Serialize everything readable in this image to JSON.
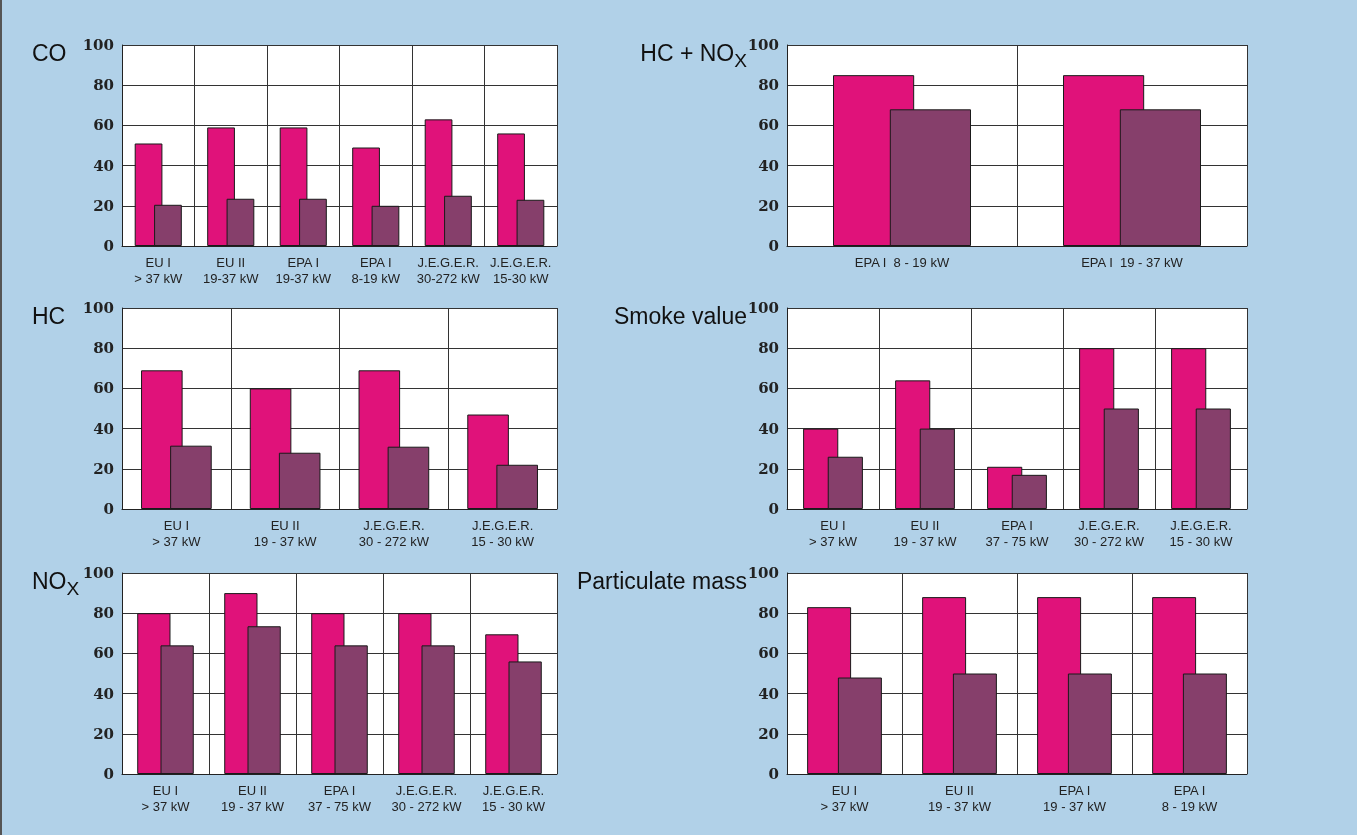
{
  "chart_data": [
    {
      "type": "bar",
      "title": "CO",
      "categories": [
        "EU I\n> 37 kW",
        "EU II\n19-37 kW",
        "EPA I\n19-37 kW",
        "EPA I\n8-19 kW",
        "J.E.G.E.R.\n30-272 kW",
        "J.E.G.E.R.\n15-30 kW"
      ],
      "series": [
        {
          "color": "#e0127a",
          "values": [
            51,
            59,
            59,
            49,
            63,
            56
          ]
        },
        {
          "color": "#863f6b",
          "values": [
            20.5,
            23.5,
            23.5,
            20,
            25,
            23
          ]
        }
      ],
      "ylim": [
        0,
        100
      ],
      "yticks": [
        0,
        20,
        40,
        60,
        80,
        100
      ],
      "grid": true
    },
    {
      "type": "bar",
      "title": "HC + NO$_{X}$",
      "categories": [
        "EPA I  8 - 19 kW",
        "EPA I  19 - 37 kW"
      ],
      "series": [
        {
          "color": "#e0127a",
          "values": [
            85,
            85
          ]
        },
        {
          "color": "#863f6b",
          "values": [
            68,
            68
          ]
        }
      ],
      "ylim": [
        0,
        100
      ],
      "yticks": [
        0,
        20,
        40,
        60,
        80,
        100
      ],
      "grid": true
    },
    {
      "type": "bar",
      "title": "HC",
      "categories": [
        "EU I\n> 37 kW",
        "EU II\n19 - 37 kW",
        "J.E.G.E.R.\n30 - 272 kW",
        "J.E.G.E.R.\n15 - 30 kW"
      ],
      "series": [
        {
          "color": "#e0127a",
          "values": [
            69,
            60,
            69,
            47
          ]
        },
        {
          "color": "#863f6b",
          "values": [
            31.5,
            28,
            31,
            22
          ]
        }
      ],
      "ylim": [
        0,
        100
      ],
      "yticks": [
        0,
        20,
        40,
        60,
        80,
        100
      ],
      "grid": true
    },
    {
      "type": "bar",
      "title": "Smoke value",
      "categories": [
        "EU I\n> 37 kW",
        "EU II\n19 - 37 kW",
        "EPA I\n37 - 75 kW",
        "J.E.G.E.R.\n30 - 272 kW",
        "J.E.G.E.R.\n15 - 30 kW"
      ],
      "series": [
        {
          "color": "#e0127a",
          "values": [
            40,
            64,
            21,
            80,
            80
          ]
        },
        {
          "color": "#863f6b",
          "values": [
            26,
            40,
            17,
            50,
            50
          ]
        }
      ],
      "ylim": [
        0,
        100
      ],
      "yticks": [
        0,
        20,
        40,
        60,
        80,
        100
      ],
      "grid": true
    },
    {
      "type": "bar",
      "title": "NO$_{X}$",
      "categories": [
        "EU I\n> 37 kW",
        "EU II\n19 - 37 kW",
        "EPA I\n37 - 75 kW",
        "J.E.G.E.R.\n30 - 272 kW",
        "J.E.G.E.R.\n15 - 30 kW"
      ],
      "series": [
        {
          "color": "#e0127a",
          "values": [
            80,
            90,
            80,
            80,
            69.5
          ]
        },
        {
          "color": "#863f6b",
          "values": [
            64,
            73.5,
            64,
            64,
            56
          ]
        }
      ],
      "ylim": [
        0,
        100
      ],
      "yticks": [
        0,
        20,
        40,
        60,
        80,
        100
      ],
      "grid": true
    },
    {
      "type": "bar",
      "title": "Particulate mass",
      "categories": [
        "EU I\n> 37 kW",
        "EU II\n19 - 37 kW",
        "EPA I\n19 - 37 kW",
        "EPA I\n8 - 19 kW"
      ],
      "series": [
        {
          "color": "#e0127a",
          "values": [
            83,
            88,
            88,
            88
          ]
        },
        {
          "color": "#863f6b",
          "values": [
            48,
            50,
            50,
            50
          ]
        }
      ],
      "ylim": [
        0,
        100
      ],
      "yticks": [
        0,
        20,
        40,
        60,
        80,
        100
      ],
      "grid": true
    }
  ]
}
